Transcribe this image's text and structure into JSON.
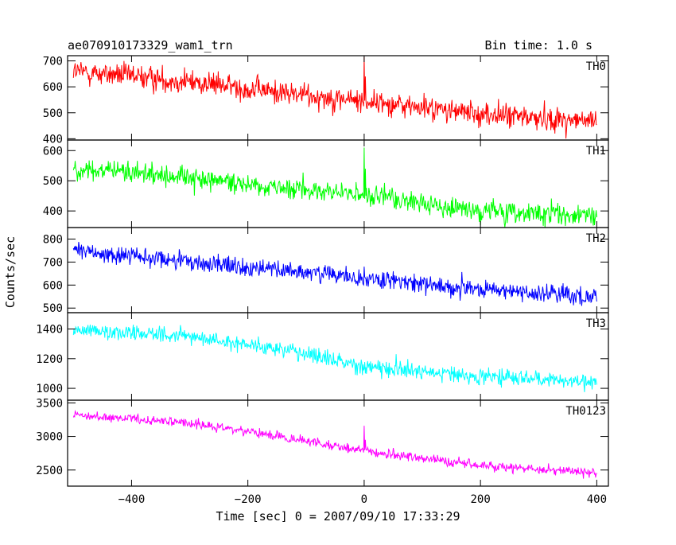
{
  "chart_data": {
    "type": "line",
    "title": "ae070910173329_wam1_trn",
    "bin_time_label": "Bin time: 1.0 s",
    "xlabel": "Time [sec] 0 = 2007/09/10 17:33:29",
    "ylabel": "Counts/sec",
    "xlim": [
      -510,
      420
    ],
    "xticks": [
      -400,
      -200,
      0,
      200,
      400
    ],
    "xticklabels": [
      "−400",
      "−200",
      "0",
      "200",
      "400"
    ],
    "x_start": -500,
    "x_end": 400,
    "x_step": 1,
    "grid": false,
    "panels": [
      {
        "name": "TH0",
        "color": "#ff0000",
        "ylim": [
          395,
          720
        ],
        "yticks": [
          400,
          500,
          600,
          700
        ],
        "trend": [
          [
            -500,
            660
          ],
          [
            -300,
            620
          ],
          [
            -150,
            580
          ],
          [
            0,
            545
          ],
          [
            200,
            495
          ],
          [
            400,
            465
          ]
        ],
        "noise": 40,
        "spikes": [
          [
            0,
            715
          ],
          [
            2,
            640
          ]
        ]
      },
      {
        "name": "TH1",
        "color": "#00ff00",
        "ylim": [
          345,
          635
        ],
        "yticks": [
          400,
          500,
          600
        ],
        "trend": [
          [
            -500,
            540
          ],
          [
            -300,
            510
          ],
          [
            -150,
            480
          ],
          [
            0,
            450
          ],
          [
            200,
            400
          ],
          [
            400,
            380
          ]
        ],
        "noise": 30,
        "spikes": [
          [
            0,
            610
          ],
          [
            2,
            540
          ]
        ]
      },
      {
        "name": "TH2",
        "color": "#0000ff",
        "ylim": [
          480,
          850
        ],
        "yticks": [
          500,
          600,
          700,
          800
        ],
        "trend": [
          [
            -500,
            750
          ],
          [
            -300,
            700
          ],
          [
            -150,
            665
          ],
          [
            0,
            630
          ],
          [
            200,
            580
          ],
          [
            400,
            550
          ]
        ],
        "noise": 35,
        "spikes": [
          [
            0,
            680
          ],
          [
            50,
            660
          ]
        ]
      },
      {
        "name": "TH3",
        "color": "#00ffff",
        "ylim": [
          920,
          1510
        ],
        "yticks": [
          1000,
          1200,
          1400
        ],
        "trend": [
          [
            -500,
            1400
          ],
          [
            -300,
            1350
          ],
          [
            -150,
            1270
          ],
          [
            0,
            1150
          ],
          [
            200,
            1080
          ],
          [
            400,
            1040
          ]
        ],
        "noise": 45,
        "spikes": [
          [
            55,
            1230
          ]
        ]
      },
      {
        "name": "TH0123",
        "color": "#ff00ff",
        "ylim": [
          2260,
          3540
        ],
        "yticks": [
          2500,
          3000,
          3500
        ],
        "trend": [
          [
            -500,
            3310
          ],
          [
            -300,
            3200
          ],
          [
            -150,
            3000
          ],
          [
            0,
            2780
          ],
          [
            200,
            2560
          ],
          [
            400,
            2460
          ]
        ],
        "noise": 60,
        "spikes": [
          [
            0,
            3160
          ],
          [
            2,
            2950
          ]
        ]
      }
    ]
  }
}
